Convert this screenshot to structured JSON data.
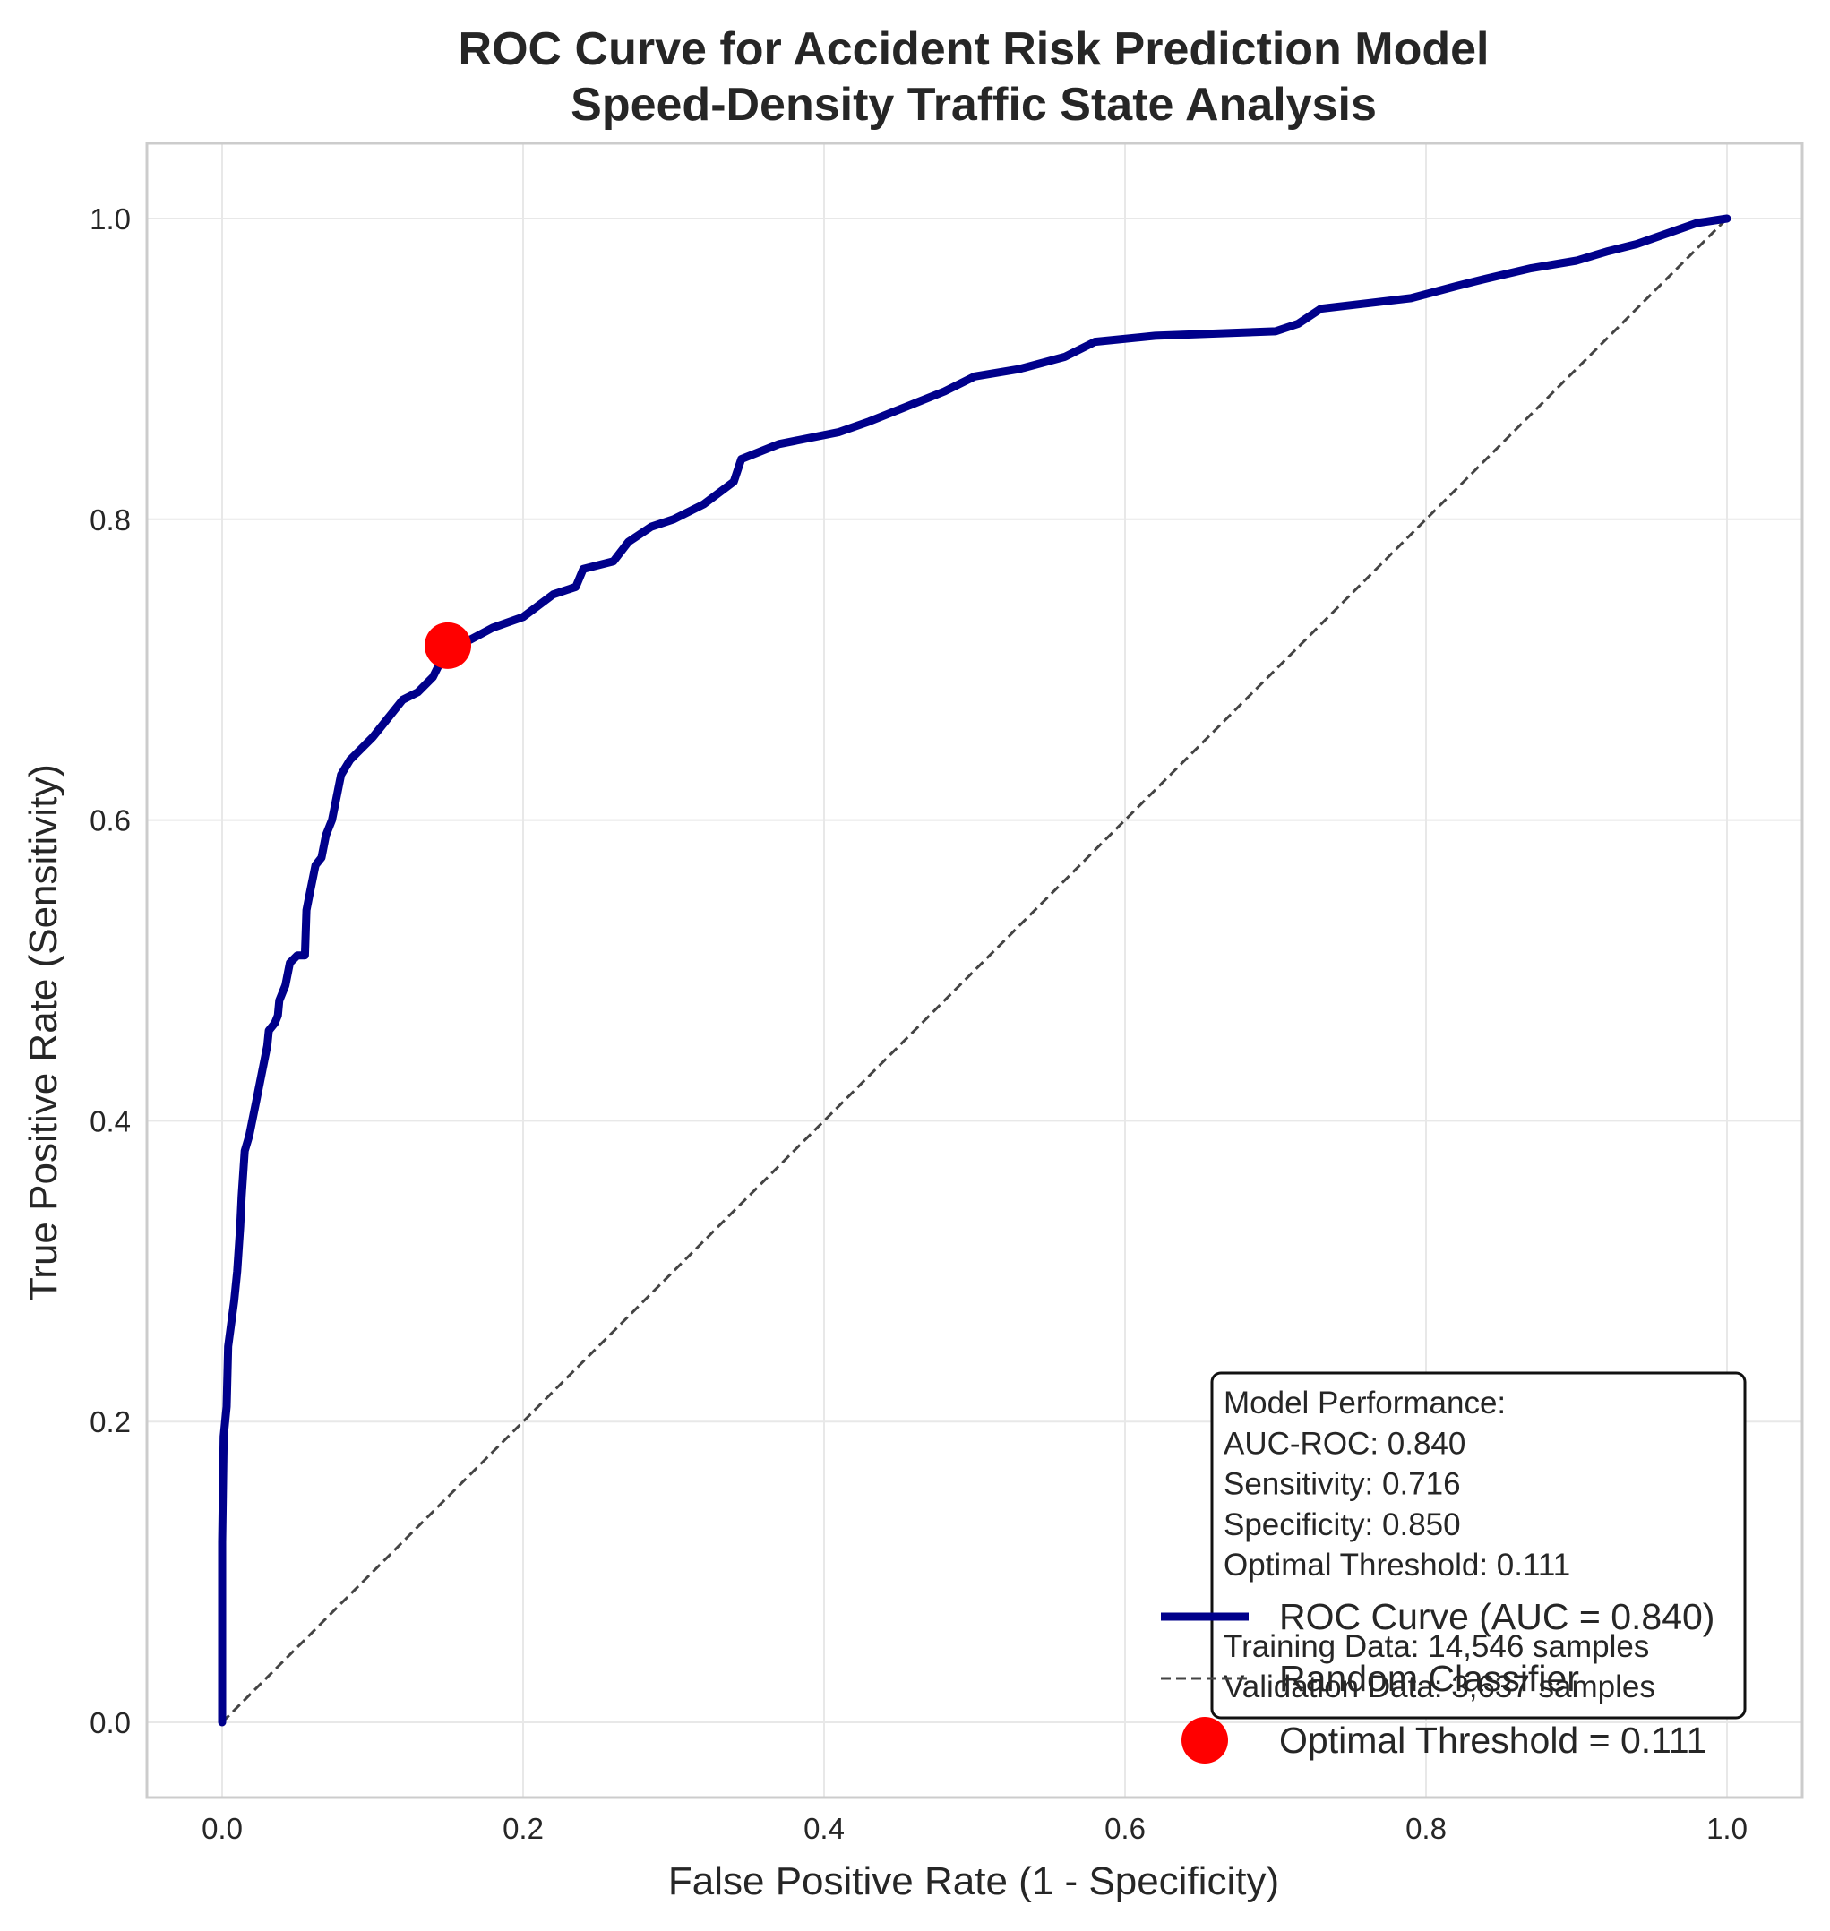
{
  "chart_data": {
    "type": "line",
    "title": [
      "ROC Curve for Accident Risk Prediction Model",
      "Speed-Density Traffic State Analysis"
    ],
    "xlabel": "False Positive Rate (1 - Specificity)",
    "ylabel": "True Positive Rate (Sensitivity)",
    "xlim": [
      -0.05,
      1.05
    ],
    "ylim": [
      -0.05,
      1.05
    ],
    "xticks": [
      0.0,
      0.2,
      0.4,
      0.6,
      0.8,
      1.0
    ],
    "yticks": [
      0.0,
      0.2,
      0.4,
      0.6,
      0.8,
      1.0
    ],
    "tick_labels_x": [
      "0.0",
      "0.2",
      "0.4",
      "0.6",
      "0.8",
      "1.0"
    ],
    "tick_labels_y": [
      "0.0",
      "0.2",
      "0.4",
      "0.6",
      "0.8",
      "1.0"
    ],
    "grid": true,
    "legend_position": "lower right",
    "colors": {
      "roc": "#00008b",
      "random": "#444444",
      "optimal": "#ff0000",
      "grid": "#e8e8e8",
      "frame": "#cccccc"
    },
    "series": [
      {
        "name": "ROC Curve (AUC = 0.840)",
        "kind": "roc",
        "points": [
          [
            0.0,
            0.0
          ],
          [
            0.0,
            0.12
          ],
          [
            0.001,
            0.19
          ],
          [
            0.003,
            0.21
          ],
          [
            0.004,
            0.25
          ],
          [
            0.008,
            0.28
          ],
          [
            0.01,
            0.3
          ],
          [
            0.012,
            0.33
          ],
          [
            0.013,
            0.35
          ],
          [
            0.015,
            0.38
          ],
          [
            0.018,
            0.39
          ],
          [
            0.02,
            0.4
          ],
          [
            0.022,
            0.41
          ],
          [
            0.026,
            0.43
          ],
          [
            0.03,
            0.45
          ],
          [
            0.031,
            0.46
          ],
          [
            0.035,
            0.465
          ],
          [
            0.037,
            0.47
          ],
          [
            0.038,
            0.48
          ],
          [
            0.042,
            0.49
          ],
          [
            0.045,
            0.505
          ],
          [
            0.05,
            0.51
          ],
          [
            0.055,
            0.51
          ],
          [
            0.056,
            0.54
          ],
          [
            0.058,
            0.55
          ],
          [
            0.062,
            0.57
          ],
          [
            0.066,
            0.575
          ],
          [
            0.069,
            0.59
          ],
          [
            0.073,
            0.6
          ],
          [
            0.076,
            0.615
          ],
          [
            0.079,
            0.63
          ],
          [
            0.085,
            0.64
          ],
          [
            0.09,
            0.645
          ],
          [
            0.1,
            0.655
          ],
          [
            0.108,
            0.665
          ],
          [
            0.12,
            0.68
          ],
          [
            0.13,
            0.685
          ],
          [
            0.14,
            0.695
          ],
          [
            0.15,
            0.715
          ],
          [
            0.165,
            0.72
          ],
          [
            0.18,
            0.728
          ],
          [
            0.2,
            0.735
          ],
          [
            0.22,
            0.75
          ],
          [
            0.235,
            0.755
          ],
          [
            0.24,
            0.767
          ],
          [
            0.26,
            0.772
          ],
          [
            0.27,
            0.785
          ],
          [
            0.285,
            0.795
          ],
          [
            0.3,
            0.8
          ],
          [
            0.32,
            0.81
          ],
          [
            0.34,
            0.825
          ],
          [
            0.345,
            0.84
          ],
          [
            0.37,
            0.85
          ],
          [
            0.41,
            0.858
          ],
          [
            0.43,
            0.865
          ],
          [
            0.455,
            0.875
          ],
          [
            0.48,
            0.885
          ],
          [
            0.5,
            0.895
          ],
          [
            0.53,
            0.9
          ],
          [
            0.56,
            0.908
          ],
          [
            0.58,
            0.918
          ],
          [
            0.62,
            0.922
          ],
          [
            0.7,
            0.925
          ],
          [
            0.715,
            0.93
          ],
          [
            0.73,
            0.94
          ],
          [
            0.79,
            0.947
          ],
          [
            0.82,
            0.955
          ],
          [
            0.84,
            0.96
          ],
          [
            0.87,
            0.967
          ],
          [
            0.9,
            0.972
          ],
          [
            0.92,
            0.978
          ],
          [
            0.94,
            0.983
          ],
          [
            0.96,
            0.99
          ],
          [
            0.98,
            0.997
          ],
          [
            1.0,
            1.0
          ]
        ]
      },
      {
        "name": "Random Classifier",
        "kind": "diagonal",
        "points": [
          [
            0.0,
            0.0
          ],
          [
            1.0,
            1.0
          ]
        ]
      },
      {
        "name": "Optimal Threshold = 0.111",
        "kind": "marker",
        "points": [
          [
            0.15,
            0.716
          ]
        ]
      }
    ],
    "stats_box": [
      "Model Performance:",
      "AUC-ROC: 0.840",
      "Sensitivity: 0.716",
      "Specificity: 0.850",
      "Optimal Threshold: 0.111",
      "",
      "Training Data: 14,546 samples",
      "Validation Data: 3,637 samples"
    ]
  }
}
